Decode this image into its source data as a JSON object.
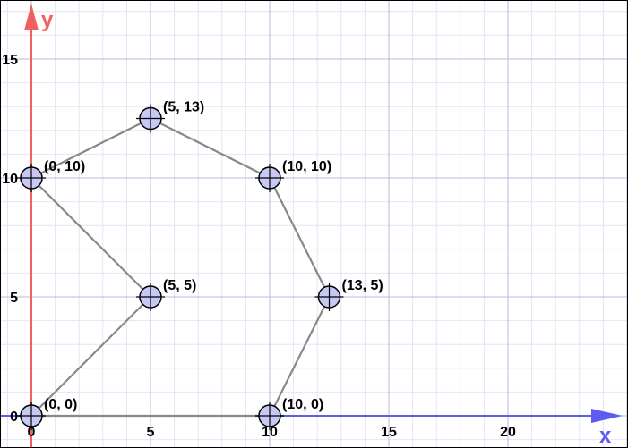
{
  "colors": {
    "minor_grid": "#e4e4f6",
    "major_grid": "#b8b8dc",
    "x_axis": "#5c5cf0",
    "y_axis": "#f06060",
    "edge": "#888888",
    "point_fill": "#c8c8f4",
    "point_stroke": "#000000",
    "frame": "#000000"
  },
  "chart_data": {
    "type": "scatter",
    "xlabel": "x",
    "ylabel": "y",
    "xlim": [
      0,
      25
    ],
    "ylim": [
      0,
      17
    ],
    "minor_step": 1,
    "major_step": 5,
    "grid": true,
    "x_ticks": [
      {
        "value": 0,
        "label": "0"
      },
      {
        "value": 5,
        "label": "5"
      },
      {
        "value": 10,
        "label": "10"
      },
      {
        "value": 15,
        "label": "15"
      },
      {
        "value": 20,
        "label": "20"
      }
    ],
    "y_ticks": [
      {
        "value": 0,
        "label": "0"
      },
      {
        "value": 5,
        "label": "5"
      },
      {
        "value": 10,
        "label": "10"
      },
      {
        "value": 15,
        "label": "15"
      }
    ],
    "points": [
      {
        "id": "A",
        "x": 0,
        "y": 0,
        "label": "(0, 0)"
      },
      {
        "id": "B",
        "x": 5,
        "y": 5,
        "label": "(5, 5)"
      },
      {
        "id": "C",
        "x": 0,
        "y": 10,
        "label": "(0, 10)"
      },
      {
        "id": "D",
        "x": 5,
        "y": 12.5,
        "label": "(5, 13)"
      },
      {
        "id": "E",
        "x": 10,
        "y": 10,
        "label": "(10, 10)"
      },
      {
        "id": "F",
        "x": 12.5,
        "y": 5,
        "label": "(13, 5)"
      },
      {
        "id": "G",
        "x": 10,
        "y": 0,
        "label": "(10, 0)"
      }
    ],
    "edges": [
      [
        "A",
        "B"
      ],
      [
        "B",
        "C"
      ],
      [
        "C",
        "D"
      ],
      [
        "D",
        "E"
      ],
      [
        "E",
        "F"
      ],
      [
        "F",
        "G"
      ],
      [
        "G",
        "A"
      ]
    ]
  }
}
